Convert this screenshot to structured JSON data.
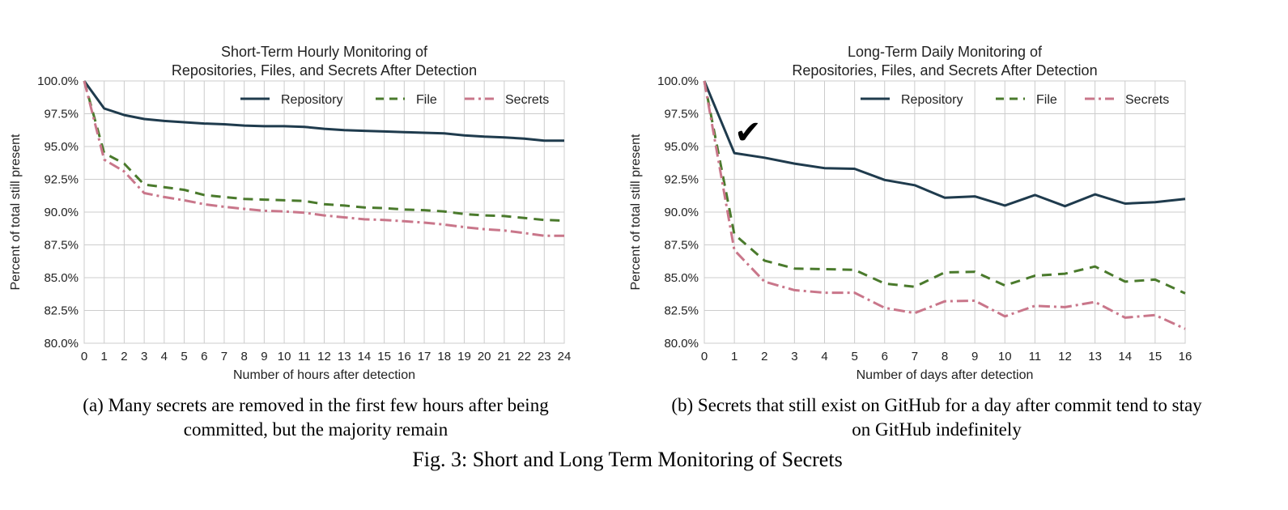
{
  "chart_data": [
    {
      "type": "line",
      "title": [
        "Short-Term Hourly Monitoring of",
        "Repositories, Files, and Secrets After Detection"
      ],
      "xlabel": "Number of hours after detection",
      "ylabel": "Percent of total still present",
      "xlim": [
        0,
        24
      ],
      "ylim": [
        80,
        100
      ],
      "x": [
        0,
        1,
        2,
        3,
        4,
        5,
        6,
        7,
        8,
        9,
        10,
        11,
        12,
        13,
        14,
        15,
        16,
        17,
        18,
        19,
        20,
        21,
        22,
        23,
        24
      ],
      "y_ticks": [
        "80.0%",
        "82.5%",
        "85.0%",
        "87.5%",
        "90.0%",
        "92.5%",
        "95.0%",
        "97.5%",
        "100.0%"
      ],
      "grid": true,
      "legend_position": "top-right",
      "series": [
        {
          "name": "Repository",
          "color": "#1f3b4d",
          "style": "solid",
          "values": [
            100,
            97.9,
            97.4,
            97.1,
            96.95,
            96.85,
            96.75,
            96.7,
            96.6,
            96.55,
            96.55,
            96.5,
            96.35,
            96.25,
            96.2,
            96.15,
            96.1,
            96.05,
            96.0,
            95.85,
            95.75,
            95.7,
            95.6,
            95.45,
            95.45
          ]
        },
        {
          "name": "File",
          "color": "#4a7a2c",
          "style": "dashed",
          "values": [
            100,
            94.5,
            93.7,
            92.1,
            91.9,
            91.7,
            91.3,
            91.15,
            91.0,
            90.95,
            90.9,
            90.85,
            90.6,
            90.5,
            90.35,
            90.3,
            90.2,
            90.15,
            90.05,
            89.85,
            89.75,
            89.7,
            89.55,
            89.4,
            89.35
          ]
        },
        {
          "name": "Secrets",
          "color": "#c9768a",
          "style": "dashdot",
          "values": [
            100,
            94.0,
            93.1,
            91.45,
            91.15,
            90.9,
            90.6,
            90.4,
            90.25,
            90.1,
            90.05,
            89.95,
            89.75,
            89.6,
            89.45,
            89.4,
            89.3,
            89.2,
            89.05,
            88.85,
            88.7,
            88.6,
            88.4,
            88.2,
            88.2
          ]
        }
      ],
      "caption": [
        "(a) Many secrets are removed in the first few hours after being",
        "committed, but the majority remain"
      ]
    },
    {
      "type": "line",
      "title": [
        "Long-Term Daily Monitoring of",
        "Repositories, Files, and Secrets After Detection"
      ],
      "xlabel": "Number of days after detection",
      "ylabel": "Percent of total still present",
      "xlim": [
        0,
        16
      ],
      "ylim": [
        80,
        100
      ],
      "x": [
        0,
        1,
        2,
        3,
        4,
        5,
        6,
        7,
        8,
        9,
        10,
        11,
        12,
        13,
        14,
        15,
        16
      ],
      "y_ticks": [
        "80.0%",
        "82.5%",
        "85.0%",
        "87.5%",
        "90.0%",
        "92.5%",
        "95.0%",
        "97.5%",
        "100.0%"
      ],
      "grid": true,
      "legend_position": "top-right",
      "series": [
        {
          "name": "Repository",
          "color": "#1f3b4d",
          "style": "solid",
          "values": [
            100,
            94.5,
            94.15,
            93.7,
            93.35,
            93.3,
            92.45,
            92.05,
            91.1,
            91.2,
            90.5,
            91.3,
            90.45,
            91.35,
            90.65,
            90.75,
            91.0
          ]
        },
        {
          "name": "File",
          "color": "#4a7a2c",
          "style": "dashed",
          "values": [
            100,
            88.3,
            86.3,
            85.7,
            85.65,
            85.6,
            84.55,
            84.3,
            85.4,
            85.45,
            84.4,
            85.15,
            85.3,
            85.85,
            84.7,
            84.85,
            83.8
          ]
        },
        {
          "name": "Secrets",
          "color": "#c9768a",
          "style": "dashdot",
          "values": [
            100,
            87.1,
            84.7,
            84.05,
            83.85,
            83.85,
            82.7,
            82.3,
            83.2,
            83.25,
            82.05,
            82.85,
            82.75,
            83.15,
            81.95,
            82.15,
            81.1
          ]
        }
      ],
      "annotation": {
        "symbol": "✔",
        "x": 1.45,
        "y": 96.0
      },
      "caption": [
        "(b) Secrets that still exist on GitHub for a day after commit tend to stay",
        "on GitHub indefinitely"
      ]
    }
  ],
  "figure_caption": "Fig. 3: Short and Long Term Monitoring of Secrets"
}
